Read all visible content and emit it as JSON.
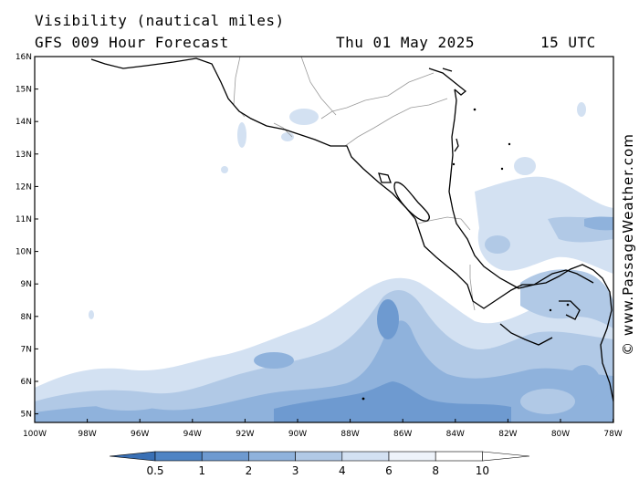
{
  "header": {
    "title": "Visibility (nautical miles)",
    "subtitle": "GFS 009 Hour Forecast",
    "date": "Thu 01 May 2025",
    "time": "15 UTC"
  },
  "credit": "© www.PassageWeather.com",
  "map": {
    "lat_labels": [
      "16N",
      "15N",
      "14N",
      "13N",
      "12N",
      "11N",
      "10N",
      "9N",
      "8N",
      "7N",
      "6N",
      "5N"
    ],
    "lon_labels": [
      "100W",
      "98W",
      "96W",
      "94W",
      "92W",
      "90W",
      "88W",
      "86W",
      "84W",
      "82W",
      "80W",
      "78W"
    ]
  },
  "legend": {
    "labels": [
      "0.5",
      "1",
      "2",
      "3",
      "4",
      "6",
      "8",
      "10"
    ],
    "colors": [
      "#3a70b5",
      "#4f84c4",
      "#6e9ad0",
      "#8fb2dc",
      "#b1c9e6",
      "#d3e1f2",
      "#eef3fa",
      "#ffffff"
    ]
  },
  "colors": {
    "coastline": "#000000",
    "border": "#999999"
  }
}
